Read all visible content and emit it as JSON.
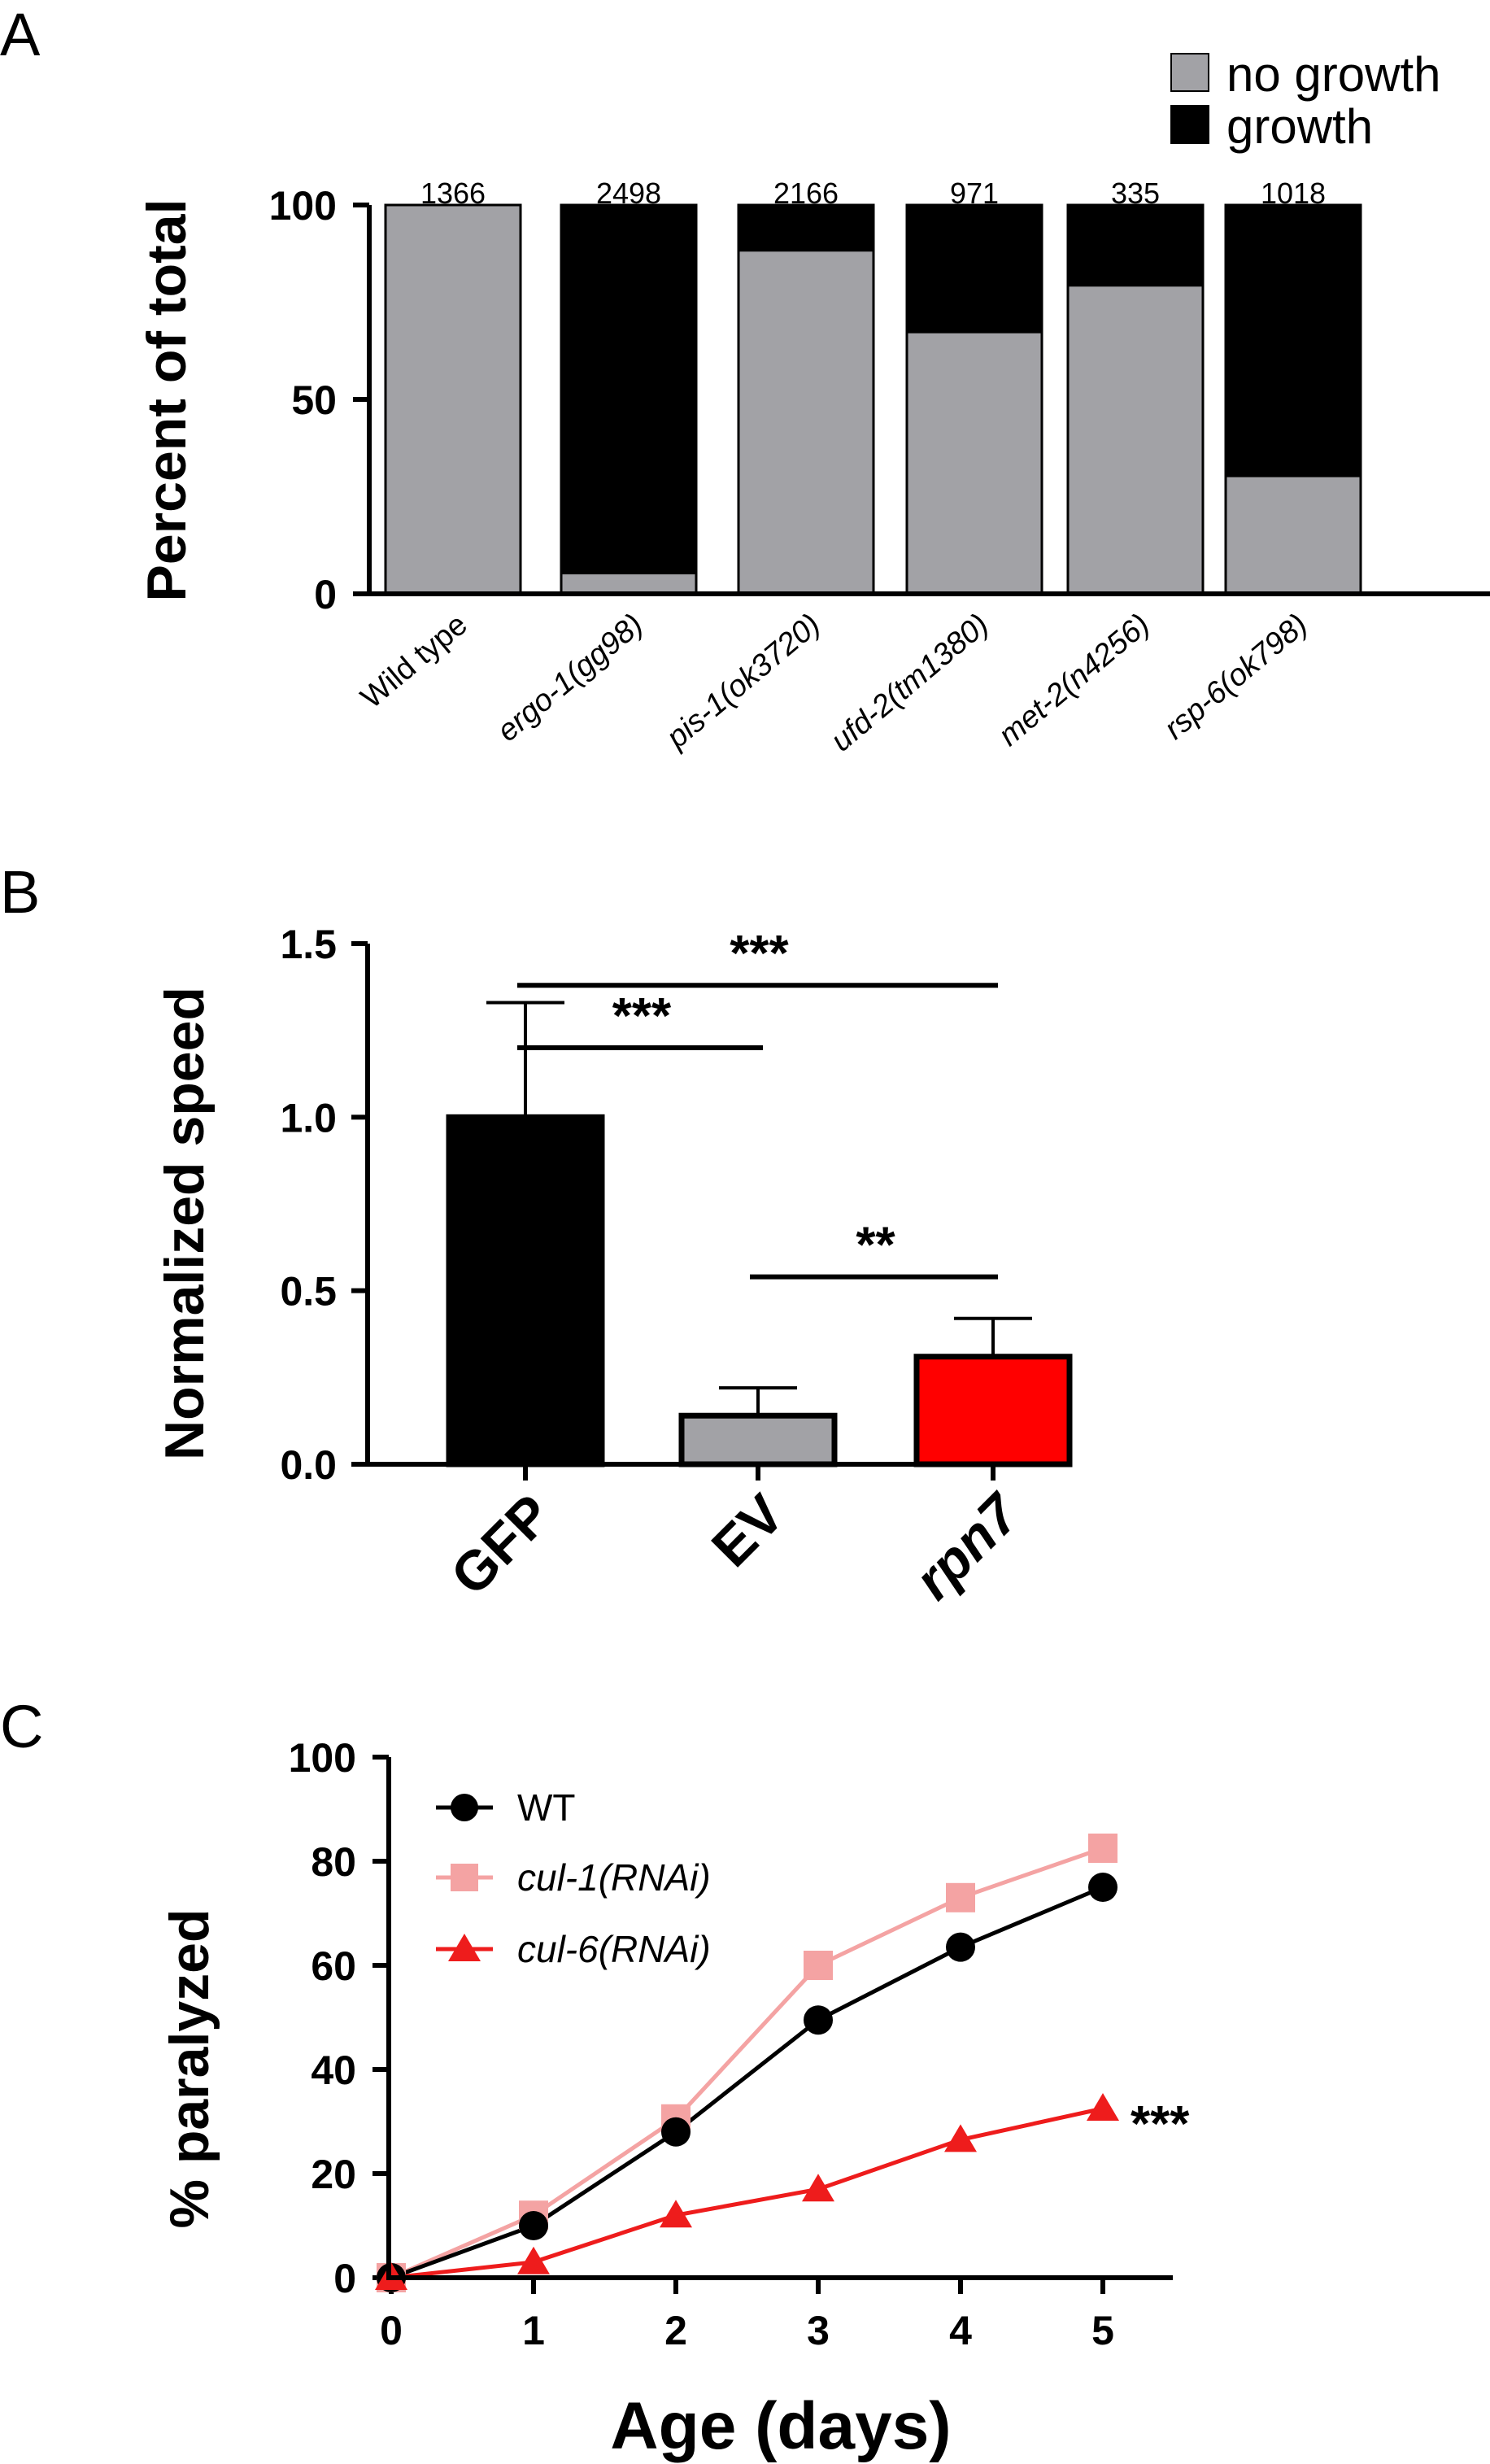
{
  "chart_data": [
    {
      "panel": "A",
      "type": "bar",
      "stacked": true,
      "ylabel": "Percent of total",
      "ylim": [
        0,
        100
      ],
      "yticks": [
        0,
        50,
        100
      ],
      "categories": [
        "Wild type",
        "ergo-1(gg98)",
        "pis-1(ok3720)",
        "ufd-2(tm1380)",
        "met-2(n4256)",
        "rsp-6(ok798)"
      ],
      "counts": [
        "1366",
        "2498",
        "2166",
        "971",
        "335",
        "1018"
      ],
      "series": [
        {
          "name": "no growth",
          "color": "#a2a2a6",
          "values": [
            100,
            5,
            88,
            67,
            79,
            30
          ]
        },
        {
          "name": "growth",
          "color": "#000000",
          "values": [
            0,
            95,
            12,
            33,
            21,
            70
          ]
        }
      ],
      "legend_position": "top-right"
    },
    {
      "panel": "B",
      "type": "bar",
      "ylabel": "Normalized speed",
      "ylim": [
        0,
        1.5
      ],
      "yticks": [
        "0.0",
        "0.5",
        "1.0",
        "1.5"
      ],
      "categories": [
        "GFP",
        "EV",
        "rpn7"
      ],
      "values": [
        1.0,
        0.14,
        0.31
      ],
      "errors": [
        0.33,
        0.08,
        0.11
      ],
      "colors": [
        "#000000",
        "#a2a2a6",
        "#ff0000"
      ],
      "significance": [
        {
          "from": 0,
          "to": 2,
          "label": "***",
          "level": 1.38
        },
        {
          "from": 0,
          "to": 1,
          "label": "***",
          "level": 1.2
        },
        {
          "from": 1,
          "to": 2,
          "label": "**",
          "level": 0.54
        }
      ]
    },
    {
      "panel": "C",
      "type": "line",
      "xlabel": "Age (days)",
      "ylabel": "% paralyzed",
      "x": [
        0,
        1,
        2,
        3,
        4,
        5
      ],
      "xticks": [
        "0",
        "1",
        "2",
        "3",
        "4",
        "5"
      ],
      "ylim": [
        0,
        100
      ],
      "yticks": [
        "0",
        "20",
        "40",
        "60",
        "80",
        "100"
      ],
      "series": [
        {
          "name": "WT",
          "marker": "circle",
          "color": "#000000",
          "values": [
            0,
            10,
            28,
            49.5,
            63.5,
            75
          ]
        },
        {
          "name": "cul-1(RNAi)",
          "marker": "square",
          "color": "#f4a3a3",
          "values": [
            0,
            12,
            30.5,
            60,
            73,
            82.5
          ]
        },
        {
          "name": "cul-6(RNAi)",
          "marker": "triangle",
          "color": "#ee1c1c",
          "values": [
            0,
            3,
            12,
            17,
            26.5,
            32.5
          ]
        }
      ],
      "annotation": "***",
      "legend_position": "top-left"
    }
  ]
}
